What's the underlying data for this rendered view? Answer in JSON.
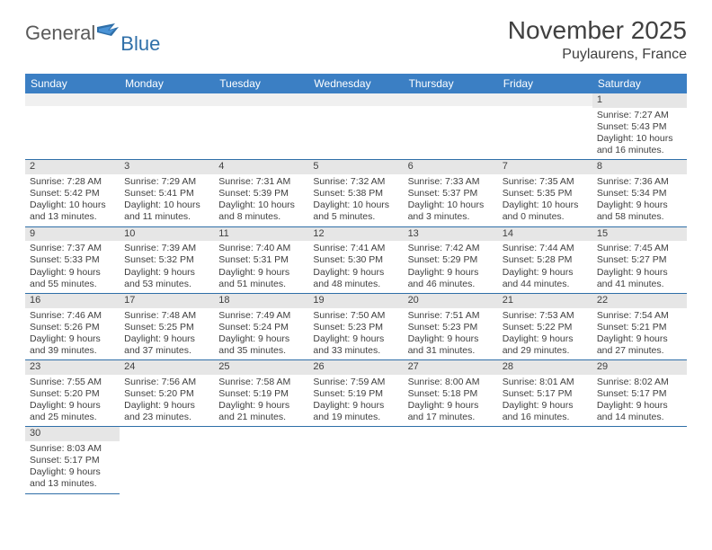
{
  "logo": {
    "text1": "General",
    "text2": "Blue",
    "flag_colors": [
      "#2f6fa8",
      "#4a93d6"
    ]
  },
  "title": "November 2025",
  "location": "Puylaurens, France",
  "colors": {
    "header_bg": "#3b7fc4",
    "header_text": "#ffffff",
    "rule": "#2f6fa8",
    "daynum_bg": "#e6e6e6",
    "blank_bg": "#f0f0f0",
    "text": "#404040"
  },
  "weekdays": [
    "Sunday",
    "Monday",
    "Tuesday",
    "Wednesday",
    "Thursday",
    "Friday",
    "Saturday"
  ],
  "first_weekday_index": 6,
  "days": [
    {
      "n": 1,
      "sr": "7:27 AM",
      "ss": "5:43 PM",
      "dl": "10 hours and 16 minutes."
    },
    {
      "n": 2,
      "sr": "7:28 AM",
      "ss": "5:42 PM",
      "dl": "10 hours and 13 minutes."
    },
    {
      "n": 3,
      "sr": "7:29 AM",
      "ss": "5:41 PM",
      "dl": "10 hours and 11 minutes."
    },
    {
      "n": 4,
      "sr": "7:31 AM",
      "ss": "5:39 PM",
      "dl": "10 hours and 8 minutes."
    },
    {
      "n": 5,
      "sr": "7:32 AM",
      "ss": "5:38 PM",
      "dl": "10 hours and 5 minutes."
    },
    {
      "n": 6,
      "sr": "7:33 AM",
      "ss": "5:37 PM",
      "dl": "10 hours and 3 minutes."
    },
    {
      "n": 7,
      "sr": "7:35 AM",
      "ss": "5:35 PM",
      "dl": "10 hours and 0 minutes."
    },
    {
      "n": 8,
      "sr": "7:36 AM",
      "ss": "5:34 PM",
      "dl": "9 hours and 58 minutes."
    },
    {
      "n": 9,
      "sr": "7:37 AM",
      "ss": "5:33 PM",
      "dl": "9 hours and 55 minutes."
    },
    {
      "n": 10,
      "sr": "7:39 AM",
      "ss": "5:32 PM",
      "dl": "9 hours and 53 minutes."
    },
    {
      "n": 11,
      "sr": "7:40 AM",
      "ss": "5:31 PM",
      "dl": "9 hours and 51 minutes."
    },
    {
      "n": 12,
      "sr": "7:41 AM",
      "ss": "5:30 PM",
      "dl": "9 hours and 48 minutes."
    },
    {
      "n": 13,
      "sr": "7:42 AM",
      "ss": "5:29 PM",
      "dl": "9 hours and 46 minutes."
    },
    {
      "n": 14,
      "sr": "7:44 AM",
      "ss": "5:28 PM",
      "dl": "9 hours and 44 minutes."
    },
    {
      "n": 15,
      "sr": "7:45 AM",
      "ss": "5:27 PM",
      "dl": "9 hours and 41 minutes."
    },
    {
      "n": 16,
      "sr": "7:46 AM",
      "ss": "5:26 PM",
      "dl": "9 hours and 39 minutes."
    },
    {
      "n": 17,
      "sr": "7:48 AM",
      "ss": "5:25 PM",
      "dl": "9 hours and 37 minutes."
    },
    {
      "n": 18,
      "sr": "7:49 AM",
      "ss": "5:24 PM",
      "dl": "9 hours and 35 minutes."
    },
    {
      "n": 19,
      "sr": "7:50 AM",
      "ss": "5:23 PM",
      "dl": "9 hours and 33 minutes."
    },
    {
      "n": 20,
      "sr": "7:51 AM",
      "ss": "5:23 PM",
      "dl": "9 hours and 31 minutes."
    },
    {
      "n": 21,
      "sr": "7:53 AM",
      "ss": "5:22 PM",
      "dl": "9 hours and 29 minutes."
    },
    {
      "n": 22,
      "sr": "7:54 AM",
      "ss": "5:21 PM",
      "dl": "9 hours and 27 minutes."
    },
    {
      "n": 23,
      "sr": "7:55 AM",
      "ss": "5:20 PM",
      "dl": "9 hours and 25 minutes."
    },
    {
      "n": 24,
      "sr": "7:56 AM",
      "ss": "5:20 PM",
      "dl": "9 hours and 23 minutes."
    },
    {
      "n": 25,
      "sr": "7:58 AM",
      "ss": "5:19 PM",
      "dl": "9 hours and 21 minutes."
    },
    {
      "n": 26,
      "sr": "7:59 AM",
      "ss": "5:19 PM",
      "dl": "9 hours and 19 minutes."
    },
    {
      "n": 27,
      "sr": "8:00 AM",
      "ss": "5:18 PM",
      "dl": "9 hours and 17 minutes."
    },
    {
      "n": 28,
      "sr": "8:01 AM",
      "ss": "5:17 PM",
      "dl": "9 hours and 16 minutes."
    },
    {
      "n": 29,
      "sr": "8:02 AM",
      "ss": "5:17 PM",
      "dl": "9 hours and 14 minutes."
    },
    {
      "n": 30,
      "sr": "8:03 AM",
      "ss": "5:17 PM",
      "dl": "9 hours and 13 minutes."
    }
  ],
  "labels": {
    "sunrise": "Sunrise: ",
    "sunset": "Sunset: ",
    "daylight": "Daylight: "
  }
}
